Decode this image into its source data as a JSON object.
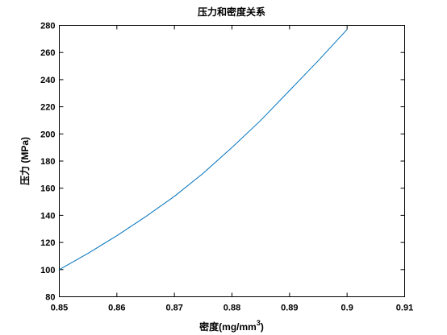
{
  "chart_data": {
    "type": "line",
    "title": "压力和密度关系",
    "xlabel_main": "密度(mg/mm",
    "xlabel_sup": "3",
    "xlabel_end": ")",
    "ylabel": "压力 (MPa)",
    "xlim": [
      0.85,
      0.91
    ],
    "ylim": [
      80,
      280
    ],
    "xticks": [
      0.85,
      0.86,
      0.87,
      0.88,
      0.89,
      0.9,
      0.91
    ],
    "xtick_labels": [
      "0.85",
      "0.86",
      "0.87",
      "0.88",
      "0.89",
      "0.9",
      "0.91"
    ],
    "yticks": [
      80,
      100,
      120,
      140,
      160,
      180,
      200,
      220,
      240,
      260,
      280
    ],
    "ytick_labels": [
      "80",
      "100",
      "120",
      "140",
      "160",
      "180",
      "200",
      "220",
      "240",
      "260",
      "280"
    ],
    "grid": false,
    "series": [
      {
        "color": "#0072bd",
        "x": [
          0.85,
          0.855,
          0.86,
          0.865,
          0.87,
          0.875,
          0.88,
          0.885,
          0.89,
          0.895,
          0.9
        ],
        "y": [
          100,
          112,
          125,
          139,
          154,
          171,
          190,
          210,
          232,
          254,
          277
        ]
      }
    ]
  }
}
